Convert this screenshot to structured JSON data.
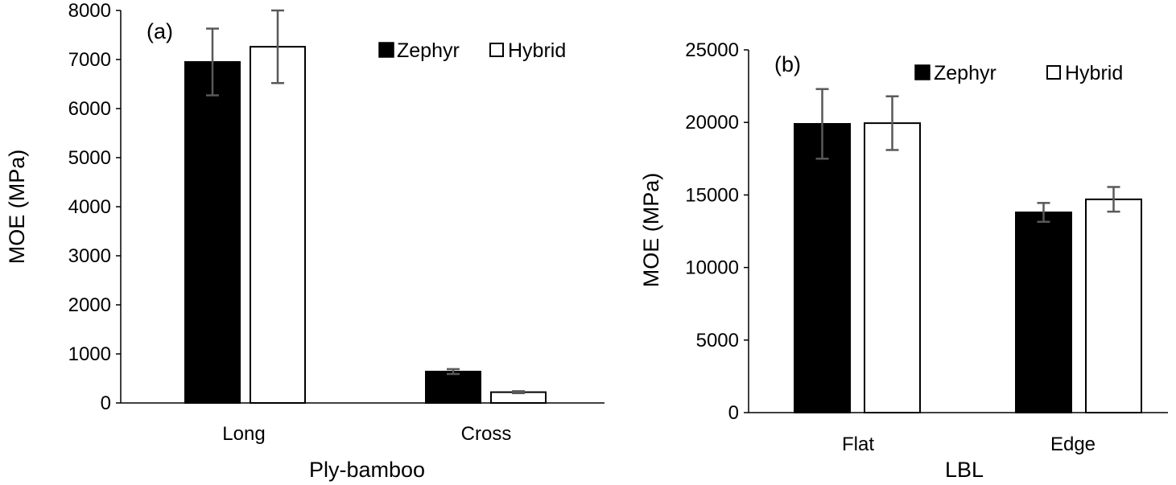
{
  "chart_data": [
    {
      "type": "bar",
      "panel_label": "(a)",
      "categories": [
        "Long",
        "Cross"
      ],
      "xlabel": "Ply-bamboo",
      "ylabel": "MOE (MPa)",
      "ylim": [
        0,
        8000
      ],
      "yticks": [
        "0",
        "1000",
        "2000",
        "3000",
        "4000",
        "5000",
        "6000",
        "7000",
        "8000"
      ],
      "grid": false,
      "legend_position": "top-right",
      "series": [
        {
          "name": "Zephyr",
          "values": [
            6950,
            640
          ],
          "errors": [
            680,
            50
          ],
          "fill": "#000000"
        },
        {
          "name": "Hybrid",
          "values": [
            7260,
            220
          ],
          "errors": [
            740,
            20
          ],
          "fill": "#ffffff"
        }
      ]
    },
    {
      "type": "bar",
      "panel_label": "(b)",
      "categories": [
        "Flat",
        "Edge"
      ],
      "xlabel": "LBL",
      "ylabel": "MOE (MPa)",
      "ylim": [
        0,
        25000
      ],
      "yticks": [
        "0",
        "5000",
        "10000",
        "15000",
        "20000",
        "25000"
      ],
      "grid": false,
      "legend_position": "top-right",
      "series": [
        {
          "name": "Zephyr",
          "values": [
            19900,
            13800
          ],
          "errors": [
            2400,
            650
          ],
          "fill": "#000000"
        },
        {
          "name": "Hybrid",
          "values": [
            19950,
            14700
          ],
          "errors": [
            1850,
            850
          ],
          "fill": "#ffffff"
        }
      ]
    }
  ],
  "colors": {
    "bar_outline": "#000000",
    "error_bar": "#595959",
    "axis": "#000000"
  }
}
